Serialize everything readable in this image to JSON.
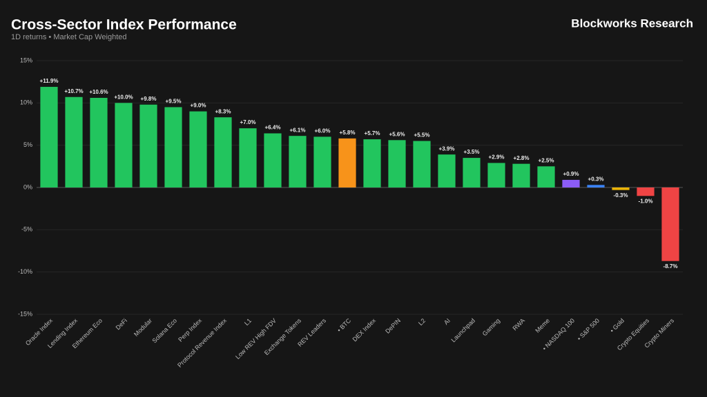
{
  "chart_data": {
    "type": "bar",
    "title": "Cross-Sector Index Performance",
    "subtitle": "1D returns • Market Cap Weighted",
    "brand": "Blockworks Research",
    "categories": [
      "Oracle Index",
      "Lending Index",
      "Ethereum Eco",
      "DeFi",
      "Modular",
      "Solana Eco",
      "Perp Index",
      "Protocol Revenue Index",
      "L1",
      "Low REV High FDV",
      "Exchange Tokens",
      "REV Leaders",
      "• BTC",
      "DEX Index",
      "DePIN",
      "L2",
      "AI",
      "Launchpad",
      "Gaming",
      "RWA",
      "Meme",
      "• NASDAQ 100",
      "• S&P 500",
      "• Gold",
      "Crypto Equities",
      "Crypto Miners"
    ],
    "values": [
      11.9,
      10.7,
      10.6,
      10.0,
      9.8,
      9.5,
      9.0,
      8.3,
      7.0,
      6.4,
      6.1,
      6.0,
      5.8,
      5.7,
      5.6,
      5.5,
      3.9,
      3.5,
      2.9,
      2.8,
      2.5,
      0.9,
      0.3,
      -0.3,
      -1.0,
      -8.7
    ],
    "value_labels": [
      "+11.9%",
      "+10.7%",
      "+10.6%",
      "+10.0%",
      "+9.8%",
      "+9.5%",
      "+9.0%",
      "+8.3%",
      "+7.0%",
      "+6.4%",
      "+6.1%",
      "+6.0%",
      "+5.8%",
      "+5.7%",
      "+5.6%",
      "+5.5%",
      "+3.9%",
      "+3.5%",
      "+2.9%",
      "+2.8%",
      "+2.5%",
      "+0.9%",
      "+0.3%",
      "-0.3%",
      "-1.0%",
      "-8.7%"
    ],
    "colors": [
      "#22c55e",
      "#22c55e",
      "#22c55e",
      "#22c55e",
      "#22c55e",
      "#22c55e",
      "#22c55e",
      "#22c55e",
      "#22c55e",
      "#22c55e",
      "#22c55e",
      "#22c55e",
      "#f7931a",
      "#22c55e",
      "#22c55e",
      "#22c55e",
      "#22c55e",
      "#22c55e",
      "#22c55e",
      "#22c55e",
      "#22c55e",
      "#8b5cf6",
      "#3b82f6",
      "#eab308",
      "#ef4444",
      "#ef4444"
    ],
    "ylim": [
      -15,
      15
    ],
    "yticks": [
      {
        "value": -15,
        "label": "-15%"
      },
      {
        "value": -10,
        "label": "-10%"
      },
      {
        "value": -5,
        "label": "-5%"
      },
      {
        "value": 0,
        "label": "0%"
      },
      {
        "value": 5,
        "label": "5%"
      },
      {
        "value": 10,
        "label": "10%"
      },
      {
        "value": 15,
        "label": "15%"
      }
    ],
    "grid": true
  }
}
